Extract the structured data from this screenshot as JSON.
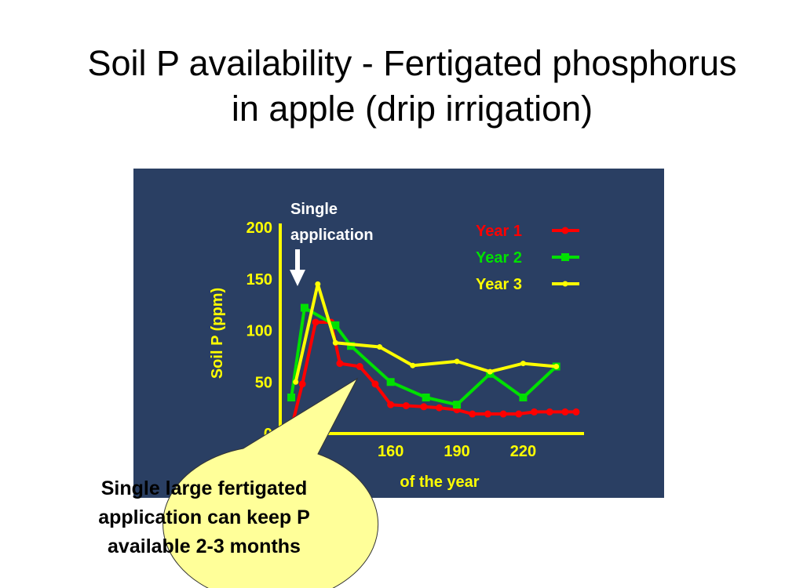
{
  "slide": {
    "title_line1": "Soil P availability - Fertigated phosphorus",
    "title_line2": "in apple (drip irrigation)"
  },
  "colors": {
    "panel_bg": "#2a3f63",
    "axis": "#ffff00",
    "year1": "#ff0000",
    "year2": "#00e000",
    "year3": "#ffff00",
    "callout_fill": "#ffff99"
  },
  "chart_data": {
    "type": "line",
    "title": "",
    "xlabel": "of the year",
    "ylabel": "Soil  P (ppm)",
    "xlim": [
      110,
      240
    ],
    "ylim": [
      0,
      200
    ],
    "x_ticks": [
      "160",
      "190",
      "220"
    ],
    "y_ticks": [
      "0",
      "50",
      "100",
      "150",
      "200"
    ],
    "legend_position": "top-right",
    "series": [
      {
        "name": "Year 1",
        "color": "#ff0000",
        "marker": "circle",
        "x": [
          115,
          120,
          126,
          133,
          137,
          146,
          153,
          160,
          167,
          175,
          182,
          190,
          197,
          204,
          211,
          218,
          225,
          232,
          239,
          244
        ],
        "y": [
          5,
          48,
          108,
          108,
          68,
          65,
          48,
          28,
          27,
          26,
          25,
          23,
          19,
          19,
          19,
          19,
          21,
          21,
          21,
          21
        ]
      },
      {
        "name": "Year 2",
        "color": "#00e000",
        "marker": "square",
        "x": [
          115,
          121,
          135,
          142,
          160,
          176,
          190,
          205,
          220,
          235
        ],
        "y": [
          35,
          122,
          105,
          85,
          50,
          35,
          28,
          58,
          35,
          65
        ]
      },
      {
        "name": "Year 3",
        "color": "#ffff00",
        "marker": "diamond",
        "x": [
          117,
          127,
          135,
          155,
          170,
          190,
          205,
          220,
          235
        ],
        "y": [
          50,
          145,
          88,
          84,
          66,
          70,
          60,
          68,
          65
        ]
      }
    ],
    "annotation": {
      "arrow_label_line1": "Single",
      "arrow_label_line2": "application"
    }
  },
  "callout": {
    "line1": "Single large fertigated",
    "line2": "application can keep P",
    "line3": "available 2-3 months"
  }
}
